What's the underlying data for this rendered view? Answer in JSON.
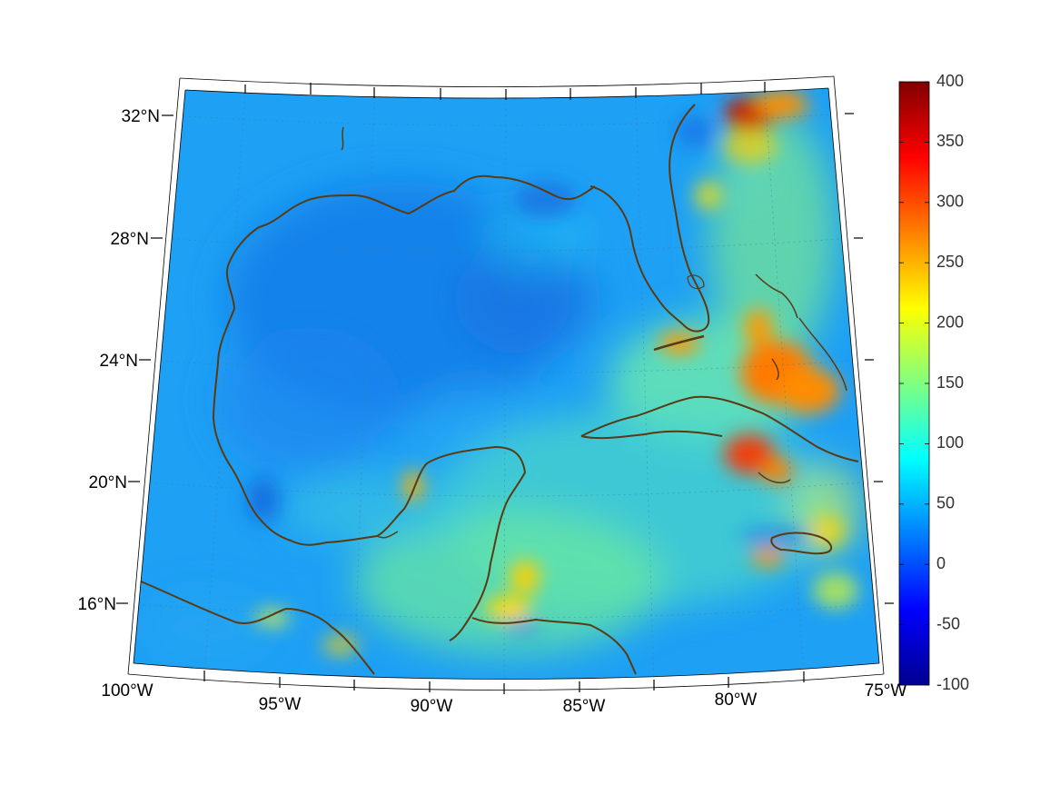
{
  "map": {
    "latitude_labels": [
      "32°N",
      "28°N",
      "24°N",
      "20°N",
      "16°N"
    ],
    "longitude_labels": [
      "100°W",
      "95°W",
      "90°W",
      "85°W",
      "80°W",
      "75°W"
    ],
    "field_colormap": "jet",
    "coastline_color": "#5a3a12",
    "grid_lines": "dotted",
    "hotspots": [
      {
        "area": "northern Bahamas / off Georgia coast",
        "value": 290
      },
      {
        "area": "central Bahamas / Great Bahama Bank",
        "value": 270
      },
      {
        "area": "southern Cuba / Cayman region",
        "value": 300
      },
      {
        "area": "Gulf of Honduras",
        "value": 210
      },
      {
        "area": "Florida Keys",
        "value": 240
      },
      {
        "area": "Yucatan west coast",
        "value": 220
      }
    ]
  },
  "colorbar": {
    "min": -100,
    "max": 400,
    "tick_labels": [
      "400",
      "350",
      "300",
      "250",
      "200",
      "150",
      "100",
      "50",
      "0",
      "-50",
      "-100"
    ],
    "colors": [
      "#00008f",
      "#0000ff",
      "#0080ff",
      "#00ffff",
      "#80ff80",
      "#ffff00",
      "#ff8000",
      "#ff0000",
      "#800000"
    ]
  }
}
